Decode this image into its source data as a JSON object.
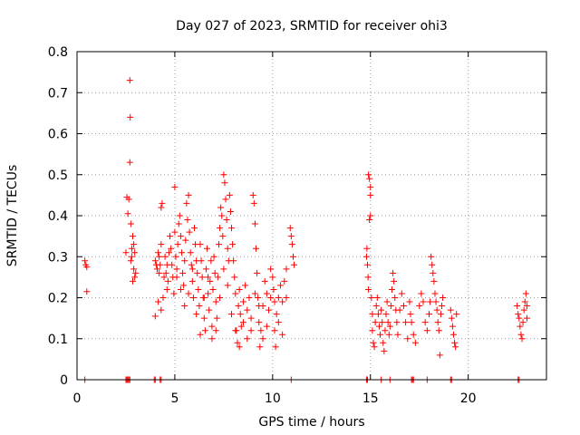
{
  "chart_data": {
    "type": "scatter",
    "title": "Day 027 of 2023, SRMTID for receiver ohi3",
    "xlabel": "GPS time / hours",
    "ylabel": "SRMTID / TECUs",
    "xlim": [
      0,
      24
    ],
    "ylim": [
      0,
      0.8
    ],
    "grid": true,
    "marker": "+",
    "color": "#ff0000",
    "xticks": [
      "0",
      "5",
      "10",
      "15",
      "20"
    ],
    "xtick_values": [
      0,
      5,
      10,
      15,
      20
    ],
    "yticks": [
      "0",
      "0.1",
      "0.2",
      "0.3",
      "0.4",
      "0.5",
      "0.6",
      "0.7",
      "0.8"
    ],
    "ytick_values": [
      0,
      0.1,
      0.2,
      0.3,
      0.4,
      0.5,
      0.6,
      0.7,
      0.8
    ],
    "series": [
      {
        "name": "SRMTID",
        "points": [
          [
            0.4,
            0.29
          ],
          [
            0.45,
            0.28
          ],
          [
            0.5,
            0.275
          ],
          [
            0.5,
            0.215
          ],
          [
            2.5,
            0.31
          ],
          [
            2.55,
            0.445
          ],
          [
            2.6,
            0.405
          ],
          [
            2.65,
            0.44
          ],
          [
            2.7,
            0.73
          ],
          [
            2.72,
            0.64
          ],
          [
            2.7,
            0.53
          ],
          [
            2.75,
            0.38
          ],
          [
            2.8,
            0.32
          ],
          [
            2.8,
            0.3
          ],
          [
            2.85,
            0.35
          ],
          [
            2.9,
            0.33
          ],
          [
            2.9,
            0.27
          ],
          [
            2.95,
            0.25
          ],
          [
            2.85,
            0.24
          ],
          [
            3.0,
            0.26
          ],
          [
            2.75,
            0.29
          ],
          [
            2.95,
            0.31
          ],
          [
            4.0,
            0.29
          ],
          [
            4.05,
            0.28
          ],
          [
            4.1,
            0.27
          ],
          [
            4.15,
            0.31
          ],
          [
            4.2,
            0.3
          ],
          [
            4.2,
            0.26
          ],
          [
            4.25,
            0.28
          ],
          [
            4.3,
            0.33
          ],
          [
            4.3,
            0.42
          ],
          [
            4.35,
            0.43
          ],
          [
            4.0,
            0.155
          ],
          [
            4.15,
            0.19
          ],
          [
            4.3,
            0.17
          ],
          [
            4.4,
            0.2
          ],
          [
            4.45,
            0.25
          ],
          [
            4.5,
            0.3
          ],
          [
            4.55,
            0.26
          ],
          [
            4.6,
            0.28
          ],
          [
            4.6,
            0.22
          ],
          [
            4.65,
            0.24
          ],
          [
            4.7,
            0.31
          ],
          [
            4.75,
            0.35
          ],
          [
            4.8,
            0.32
          ],
          [
            4.85,
            0.28
          ],
          [
            4.9,
            0.25
          ],
          [
            4.95,
            0.21
          ],
          [
            5.0,
            0.47
          ],
          [
            5.0,
            0.36
          ],
          [
            5.05,
            0.3
          ],
          [
            5.1,
            0.27
          ],
          [
            5.15,
            0.33
          ],
          [
            5.2,
            0.38
          ],
          [
            5.25,
            0.4
          ],
          [
            5.3,
            0.35
          ],
          [
            5.35,
            0.31
          ],
          [
            5.4,
            0.26
          ],
          [
            5.45,
            0.23
          ],
          [
            5.5,
            0.29
          ],
          [
            5.55,
            0.34
          ],
          [
            5.6,
            0.43
          ],
          [
            5.65,
            0.39
          ],
          [
            5.7,
            0.45
          ],
          [
            5.75,
            0.36
          ],
          [
            5.8,
            0.31
          ],
          [
            5.85,
            0.28
          ],
          [
            5.9,
            0.24
          ],
          [
            5.95,
            0.2
          ],
          [
            6.0,
            0.37
          ],
          [
            6.05,
            0.33
          ],
          [
            6.1,
            0.29
          ],
          [
            6.15,
            0.26
          ],
          [
            6.2,
            0.22
          ],
          [
            6.25,
            0.18
          ],
          [
            6.3,
            0.33
          ],
          [
            6.35,
            0.29
          ],
          [
            6.4,
            0.25
          ],
          [
            6.45,
            0.2
          ],
          [
            6.5,
            0.15
          ],
          [
            6.55,
            0.12
          ],
          [
            6.6,
            0.27
          ],
          [
            6.65,
            0.32
          ],
          [
            6.7,
            0.21
          ],
          [
            6.75,
            0.17
          ],
          [
            6.8,
            0.24
          ],
          [
            6.85,
            0.29
          ],
          [
            6.9,
            0.13
          ],
          [
            6.95,
            0.22
          ],
          [
            7.0,
            0.3
          ],
          [
            7.05,
            0.26
          ],
          [
            7.1,
            0.19
          ],
          [
            7.15,
            0.15
          ],
          [
            7.2,
            0.25
          ],
          [
            7.25,
            0.33
          ],
          [
            7.3,
            0.37
          ],
          [
            7.35,
            0.42
          ],
          [
            7.4,
            0.4
          ],
          [
            7.45,
            0.35
          ],
          [
            7.5,
            0.5
          ],
          [
            7.55,
            0.48
          ],
          [
            7.6,
            0.44
          ],
          [
            7.65,
            0.39
          ],
          [
            7.7,
            0.32
          ],
          [
            7.75,
            0.29
          ],
          [
            7.8,
            0.45
          ],
          [
            7.85,
            0.41
          ],
          [
            7.9,
            0.37
          ],
          [
            7.95,
            0.33
          ],
          [
            8.0,
            0.29
          ],
          [
            8.05,
            0.25
          ],
          [
            8.1,
            0.21
          ],
          [
            8.15,
            0.12
          ],
          [
            8.2,
            0.09
          ],
          [
            8.25,
            0.18
          ],
          [
            8.3,
            0.22
          ],
          [
            8.35,
            0.16
          ],
          [
            8.4,
            0.13
          ],
          [
            8.5,
            0.19
          ],
          [
            8.6,
            0.23
          ],
          [
            8.7,
            0.17
          ],
          [
            8.8,
            0.2
          ],
          [
            8.9,
            0.15
          ],
          [
            9.0,
            0.45
          ],
          [
            9.05,
            0.43
          ],
          [
            9.1,
            0.38
          ],
          [
            9.15,
            0.32
          ],
          [
            9.2,
            0.26
          ],
          [
            9.25,
            0.2
          ],
          [
            9.3,
            0.14
          ],
          [
            9.35,
            0.08
          ],
          [
            9.4,
            0.12
          ],
          [
            9.5,
            0.18
          ],
          [
            9.6,
            0.24
          ],
          [
            9.7,
            0.21
          ],
          [
            9.8,
            0.17
          ],
          [
            9.9,
            0.27
          ],
          [
            10.0,
            0.25
          ],
          [
            10.05,
            0.22
          ],
          [
            10.1,
            0.19
          ],
          [
            10.15,
            0.08
          ],
          [
            10.2,
            0.16
          ],
          [
            10.3,
            0.2
          ],
          [
            10.4,
            0.23
          ],
          [
            10.5,
            0.19
          ],
          [
            10.6,
            0.24
          ],
          [
            10.7,
            0.27
          ],
          [
            10.9,
            0.37
          ],
          [
            10.95,
            0.35
          ],
          [
            11.0,
            0.33
          ],
          [
            11.05,
            0.3
          ],
          [
            11.1,
            0.28
          ],
          [
            5.1,
            0.25
          ],
          [
            5.3,
            0.22
          ],
          [
            5.5,
            0.18
          ],
          [
            5.7,
            0.21
          ],
          [
            5.9,
            0.27
          ],
          [
            6.1,
            0.16
          ],
          [
            6.3,
            0.11
          ],
          [
            6.5,
            0.2
          ],
          [
            6.7,
            0.25
          ],
          [
            6.9,
            0.1
          ],
          [
            7.1,
            0.12
          ],
          [
            7.3,
            0.2
          ],
          [
            7.5,
            0.27
          ],
          [
            7.7,
            0.23
          ],
          [
            7.9,
            0.16
          ],
          [
            8.1,
            0.12
          ],
          [
            8.3,
            0.08
          ],
          [
            8.5,
            0.14
          ],
          [
            8.7,
            0.1
          ],
          [
            8.9,
            0.12
          ],
          [
            9.1,
            0.21
          ],
          [
            9.3,
            0.18
          ],
          [
            9.5,
            0.1
          ],
          [
            9.7,
            0.13
          ],
          [
            9.9,
            0.2
          ],
          [
            10.1,
            0.12
          ],
          [
            10.3,
            0.14
          ],
          [
            10.5,
            0.11
          ],
          [
            10.7,
            0.2
          ],
          [
            14.8,
            0.3
          ],
          [
            14.82,
            0.32
          ],
          [
            14.85,
            0.28
          ],
          [
            14.88,
            0.25
          ],
          [
            14.9,
            0.22
          ],
          [
            14.9,
            0.5
          ],
          [
            14.95,
            0.49
          ],
          [
            15.0,
            0.47
          ],
          [
            15.0,
            0.45
          ],
          [
            14.95,
            0.39
          ],
          [
            15.0,
            0.4
          ],
          [
            15.05,
            0.2
          ],
          [
            15.1,
            0.16
          ],
          [
            15.1,
            0.12
          ],
          [
            15.15,
            0.09
          ],
          [
            15.2,
            0.08
          ],
          [
            15.25,
            0.14
          ],
          [
            15.3,
            0.18
          ],
          [
            15.35,
            0.2
          ],
          [
            15.4,
            0.16
          ],
          [
            15.45,
            0.13
          ],
          [
            15.5,
            0.11
          ],
          [
            15.55,
            0.17
          ],
          [
            15.6,
            0.14
          ],
          [
            15.65,
            0.09
          ],
          [
            15.7,
            0.07
          ],
          [
            15.75,
            0.12
          ],
          [
            15.8,
            0.16
          ],
          [
            15.85,
            0.19
          ],
          [
            15.9,
            0.14
          ],
          [
            15.95,
            0.11
          ],
          [
            16.0,
            0.13
          ],
          [
            16.05,
            0.18
          ],
          [
            16.1,
            0.22
          ],
          [
            16.15,
            0.26
          ],
          [
            16.2,
            0.24
          ],
          [
            16.25,
            0.2
          ],
          [
            16.3,
            0.17
          ],
          [
            16.35,
            0.14
          ],
          [
            16.4,
            0.11
          ],
          [
            16.5,
            0.17
          ],
          [
            16.6,
            0.21
          ],
          [
            16.7,
            0.18
          ],
          [
            16.8,
            0.14
          ],
          [
            16.9,
            0.1
          ],
          [
            17.0,
            0.19
          ],
          [
            17.05,
            0.16
          ],
          [
            17.1,
            0.14
          ],
          [
            17.2,
            0.11
          ],
          [
            17.3,
            0.09
          ],
          [
            17.5,
            0.18
          ],
          [
            17.6,
            0.21
          ],
          [
            17.7,
            0.19
          ],
          [
            17.8,
            0.14
          ],
          [
            17.9,
            0.12
          ],
          [
            18.0,
            0.16
          ],
          [
            18.05,
            0.19
          ],
          [
            18.1,
            0.3
          ],
          [
            18.15,
            0.28
          ],
          [
            18.2,
            0.26
          ],
          [
            18.25,
            0.24
          ],
          [
            18.3,
            0.21
          ],
          [
            18.35,
            0.19
          ],
          [
            18.4,
            0.17
          ],
          [
            18.45,
            0.14
          ],
          [
            18.5,
            0.12
          ],
          [
            18.55,
            0.06
          ],
          [
            18.6,
            0.16
          ],
          [
            18.65,
            0.18
          ],
          [
            18.7,
            0.2
          ],
          [
            19.1,
            0.17
          ],
          [
            19.15,
            0.15
          ],
          [
            19.2,
            0.13
          ],
          [
            19.25,
            0.11
          ],
          [
            19.3,
            0.09
          ],
          [
            19.35,
            0.08
          ],
          [
            19.4,
            0.16
          ],
          [
            22.5,
            0.18
          ],
          [
            22.55,
            0.16
          ],
          [
            22.6,
            0.15
          ],
          [
            22.65,
            0.13
          ],
          [
            22.7,
            0.11
          ],
          [
            22.75,
            0.1
          ],
          [
            22.8,
            0.14
          ],
          [
            22.85,
            0.17
          ],
          [
            22.9,
            0.19
          ],
          [
            22.95,
            0.21
          ],
          [
            23.0,
            0.18
          ],
          [
            23.0,
            0.15
          ],
          [
            0.4,
            0
          ],
          [
            2.5,
            0
          ],
          [
            2.55,
            0
          ],
          [
            2.6,
            0
          ],
          [
            2.65,
            0
          ],
          [
            2.7,
            0
          ],
          [
            3.95,
            0
          ],
          [
            4.0,
            0
          ],
          [
            4.25,
            0
          ],
          [
            4.3,
            0
          ],
          [
            10.95,
            0
          ],
          [
            14.8,
            0
          ],
          [
            14.85,
            0
          ],
          [
            15.55,
            0
          ],
          [
            16.0,
            0
          ],
          [
            17.1,
            0
          ],
          [
            17.15,
            0
          ],
          [
            17.2,
            0
          ],
          [
            17.9,
            0
          ],
          [
            19.1,
            0
          ],
          [
            19.15,
            0
          ],
          [
            22.55,
            0
          ],
          [
            22.6,
            0
          ]
        ]
      }
    ]
  }
}
